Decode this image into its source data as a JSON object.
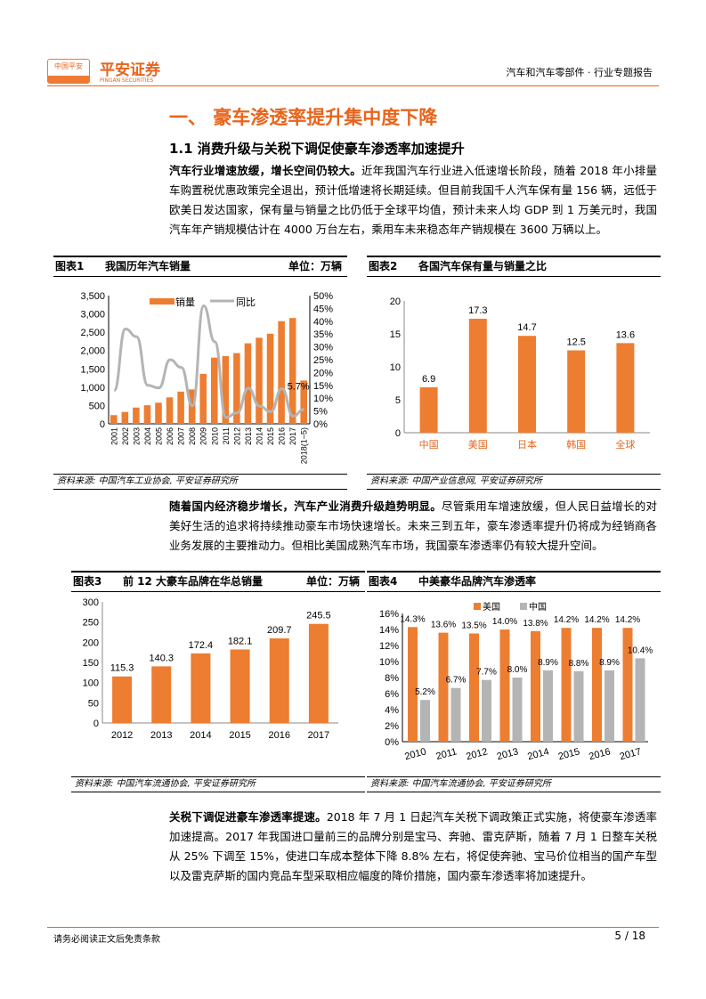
{
  "header": {
    "logo_small": "中国平安",
    "logo_main": "平安证券",
    "logo_sub": "PINGAN SECURITIES",
    "report_type": "汽车和汽车零部件 · 行业专题报告"
  },
  "section_title": "一、  豪车渗透率提升集中度下降",
  "subsection_title": "1.1 消费升级与关税下调促使豪车渗透率加速提升",
  "paragraphs": [
    {
      "bold": "汽车行业增速放缓，增长空间仍较大。",
      "text": "近年我国汽车行业进入低速增长阶段，随着 2018 年小排量车购置税优惠政策完全退出，预计低增速将长期延续。但目前我国千人汽车保有量 156 辆，远低于欧美日发达国家，保有量与销量之比仍低于全球平均值，预计未来人均 GDP 到 1 万美元时，我国汽车年产销规模估计在 4000 万台左右，乘用车未来稳态年产销规模在 3600 万辆以上。"
    },
    {
      "bold": "随着国内经济稳步增长，汽车产业消费升级趋势明显。",
      "text": "尽管乘用车增速放缓，但人民日益增长的对美好生活的追求将持续推动豪车市场快速增长。未来三到五年，豪车渗透率提升仍将成为经销商各业务发展的主要推动力。但相比美国成熟汽车市场，我国豪车渗透率仍有较大提升空间。"
    },
    {
      "bold": "关税下调促进豪车渗透率提速。",
      "text": "2018 年 7 月 1 日起汽车关税下调政策正式实施，将使豪车渗透率加速提高。2017 年我国进口量前三的品牌分别是宝马、奔驰、雷克萨斯，随着 7 月 1 日整车关税从 25% 下调至 15%，使进口车成本整体下降 8.8% 左右，将促使奔驰、宝马价位相当的国产车型以及雷克萨斯的国内竞品车型采取相应幅度的降价措施，国内豪车渗透率将加速提升。"
    }
  ],
  "figures": [
    {
      "num": "图表1",
      "title": "我国历年汽车销量",
      "unit": "单位：万辆",
      "source": "资料来源: 中国汽车工业协会, 平安证券研究所"
    },
    {
      "num": "图表2",
      "title": "各国汽车保有量与销量之比",
      "unit": "",
      "source": "资料来源: 中国产业信息网, 平安证券研究所"
    },
    {
      "num": "图表3",
      "title": "前 12 大豪车品牌在华总销量",
      "unit": "单位：万辆",
      "source": "资料来源: 中国汽车流通协会, 平安证券研究所"
    },
    {
      "num": "图表4",
      "title": "中美豪华品牌汽车渗透率",
      "unit": "",
      "source": "资料来源: 中国汽车流通协会, 平安证券研究所"
    }
  ],
  "chart_data": [
    {
      "type": "bar+line",
      "categories": [
        "2001",
        "2002",
        "2003",
        "2004",
        "2005",
        "2006",
        "2007",
        "2008",
        "2009",
        "2010",
        "2011",
        "2012",
        "2013",
        "2014",
        "2015",
        "2016",
        "2017",
        "2018(1~5)"
      ],
      "series": [
        {
          "name": "销量",
          "axis": "left",
          "values": [
            237,
            325,
            444,
            507,
            576,
            722,
            879,
            938,
            1364,
            1806,
            1851,
            1931,
            2198,
            2349,
            2460,
            2803,
            2888,
            1182
          ]
        },
        {
          "name": "同比",
          "axis": "right",
          "values": [
            13,
            37,
            34,
            15,
            14,
            25,
            22,
            7,
            46,
            32,
            2.5,
            4.3,
            13.9,
            6.9,
            4.7,
            13.7,
            3,
            5.7
          ]
        }
      ],
      "annotation": "5.7%",
      "ylim": [
        0,
        3500
      ],
      "yticks": [
        "0",
        "500",
        "1,000",
        "1,500",
        "2,000",
        "2,500",
        "3,000",
        "3,500"
      ],
      "y2lim": [
        0,
        50
      ],
      "y2ticks": [
        "0%",
        "5%",
        "10%",
        "15%",
        "20%",
        "25%",
        "30%",
        "35%",
        "40%",
        "45%",
        "50%"
      ],
      "color": "#ed7d31",
      "line_color": "#b4b4b4"
    },
    {
      "type": "bar",
      "categories": [
        "中国",
        "美国",
        "日本",
        "韩国",
        "全球"
      ],
      "values": [
        6.9,
        17.3,
        14.7,
        12.5,
        13.6
      ],
      "labels": [
        "6.9",
        "17.3",
        "14.7",
        "12.5",
        "13.6"
      ],
      "ylim": [
        0,
        20
      ],
      "yticks": [
        "0",
        "5",
        "10",
        "15",
        "20"
      ],
      "color": "#ed7d31"
    },
    {
      "type": "bar",
      "categories": [
        "2012",
        "2013",
        "2014",
        "2015",
        "2016",
        "2017"
      ],
      "values": [
        115.3,
        140.3,
        172.4,
        182.1,
        209.7,
        245.5
      ],
      "labels": [
        "115.3",
        "140.3",
        "172.4",
        "182.1",
        "209.7",
        "245.5"
      ],
      "ylim": [
        0,
        300
      ],
      "yticks": [
        "0",
        "50",
        "100",
        "150",
        "200",
        "250",
        "300"
      ],
      "color": "#ed7d31"
    },
    {
      "type": "bar",
      "categories": [
        "2010",
        "2011",
        "2012",
        "2013",
        "2014",
        "2015",
        "2016",
        "2017"
      ],
      "series": [
        {
          "name": "美国",
          "values": [
            14.3,
            13.6,
            13.5,
            14.0,
            13.8,
            14.2,
            14.2,
            14.2
          ],
          "labels": [
            "14.3%",
            "13.6%",
            "13.5%",
            "14.0%",
            "13.8%",
            "14.2%",
            "14.2%",
            "14.2%"
          ],
          "color": "#ed7d31"
        },
        {
          "name": "中国",
          "values": [
            5.2,
            6.7,
            7.7,
            8.0,
            8.9,
            8.8,
            8.9,
            10.4
          ],
          "labels": [
            "5.2%",
            "6.7%",
            "7.7%",
            "8.0%",
            "8.9%",
            "8.8%",
            "8.9%",
            "10.4%"
          ],
          "color": "#b4b4b4"
        }
      ],
      "ylim": [
        0,
        16
      ],
      "yticks": [
        "0%",
        "2%",
        "4%",
        "6%",
        "8%",
        "10%",
        "12%",
        "14%",
        "16%"
      ]
    }
  ],
  "footer": {
    "disclaimer": "请务必阅读正文后免责条款",
    "page": "5 / 18"
  }
}
